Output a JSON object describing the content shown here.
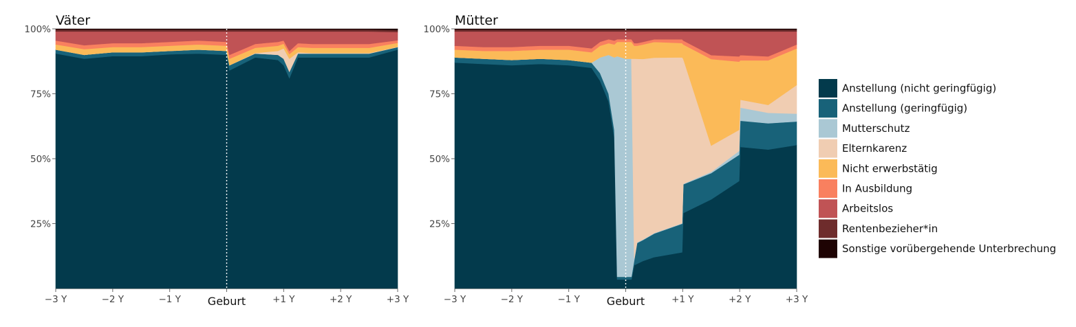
{
  "chart_data": [
    {
      "type": "area",
      "title": "Väter",
      "stacked": true,
      "normalized": true,
      "x_unit": "years relative to birth",
      "x_ticks": [
        {
          "x": -3,
          "label": "−3 Y"
        },
        {
          "x": -2,
          "label": "−2 Y"
        },
        {
          "x": -1,
          "label": "−1 Y"
        },
        {
          "x": 0,
          "label": "Geburt"
        },
        {
          "x": 1,
          "label": "+1 Y"
        },
        {
          "x": 2,
          "label": "+2 Y"
        },
        {
          "x": 3,
          "label": "+3 Y"
        }
      ],
      "y_ticks": [
        {
          "y": 25,
          "label": "25%"
        },
        {
          "y": 50,
          "label": "50%"
        },
        {
          "y": 75,
          "label": "75%"
        },
        {
          "y": 100,
          "label": "100%"
        }
      ],
      "xlim": [
        -3,
        3
      ],
      "ylim": [
        0,
        100
      ],
      "x": [
        -3,
        -2.5,
        -2,
        -1.5,
        -1,
        -0.5,
        0,
        0.05,
        0.5,
        0.9,
        1.0,
        1.1,
        1.25,
        1.5,
        2,
        2.5,
        3
      ],
      "series": [
        {
          "name": "Anstellung (nicht geringfügig)",
          "values": [
            90.5,
            88.5,
            89.5,
            89.5,
            90.2,
            90.5,
            90.0,
            84.0,
            89.0,
            88.0,
            86.0,
            81.0,
            89.0,
            89.0,
            89.0,
            89.0,
            92.0
          ]
        },
        {
          "name": "Anstellung (geringfügig)",
          "values": [
            1.5,
            1.5,
            1.5,
            1.5,
            1.3,
            1.5,
            1.5,
            2.0,
            1.5,
            2.0,
            2.5,
            2.5,
            1.5,
            1.5,
            1.5,
            1.5,
            1.0
          ]
        },
        {
          "name": "Mutterschutz",
          "values": [
            0,
            0,
            0,
            0,
            0,
            0,
            0,
            0,
            0,
            0,
            0,
            0,
            0,
            0,
            0,
            0,
            0
          ]
        },
        {
          "name": "Elternkarenz",
          "values": [
            0,
            0,
            0,
            0,
            0,
            0,
            0,
            0,
            0.2,
            1.5,
            4.0,
            5.0,
            0.5,
            0.2,
            0.2,
            0.2,
            0.1
          ]
        },
        {
          "name": "Nicht erwerbstätig",
          "values": [
            2.0,
            2.2,
            2.0,
            2.0,
            2.0,
            2.0,
            2.0,
            2.5,
            2.0,
            2.0,
            1.8,
            1.8,
            2.0,
            2.0,
            2.0,
            2.0,
            1.5
          ]
        },
        {
          "name": "In Ausbildung",
          "values": [
            1.5,
            1.5,
            1.5,
            1.5,
            1.5,
            1.5,
            1.5,
            1.5,
            1.5,
            1.5,
            1.2,
            1.2,
            1.5,
            1.5,
            1.5,
            1.5,
            1.0
          ]
        },
        {
          "name": "Arbeitslos",
          "values": [
            3.5,
            5.3,
            4.5,
            4.5,
            4.0,
            3.5,
            4.0,
            9.0,
            4.8,
            4.0,
            3.5,
            7.5,
            4.5,
            4.8,
            4.8,
            4.8,
            3.2
          ]
        },
        {
          "name": "Rentenbezieher*in",
          "values": [
            0.7,
            0.7,
            0.7,
            0.7,
            0.7,
            0.7,
            0.7,
            0.7,
            0.7,
            0.7,
            0.7,
            0.7,
            0.7,
            0.7,
            0.7,
            0.7,
            0.7
          ]
        },
        {
          "name": "Sonstige vorübergehende Unterbrechung",
          "values": [
            0.3,
            0.3,
            0.3,
            0.3,
            0.3,
            0.3,
            0.3,
            0.3,
            0.3,
            0.3,
            0.3,
            0.3,
            0.3,
            0.3,
            0.3,
            0.3,
            0.5
          ]
        }
      ],
      "vline": {
        "x": 0,
        "style": "dotted",
        "color": "#ffffff"
      }
    },
    {
      "type": "area",
      "title": "Mütter",
      "stacked": true,
      "normalized": true,
      "x_unit": "years relative to birth",
      "x_ticks": [
        {
          "x": -3,
          "label": "−3 Y"
        },
        {
          "x": -2,
          "label": "−2 Y"
        },
        {
          "x": -1,
          "label": "−1 Y"
        },
        {
          "x": 0,
          "label": "Geburt"
        },
        {
          "x": 1,
          "label": "+1 Y"
        },
        {
          "x": 2,
          "label": "+2 Y"
        },
        {
          "x": 3,
          "label": "+3 Y"
        }
      ],
      "y_ticks": [
        {
          "y": 25,
          "label": "25%"
        },
        {
          "y": 50,
          "label": "50%"
        },
        {
          "y": 75,
          "label": "75%"
        },
        {
          "y": 100,
          "label": "100%"
        }
      ],
      "xlim": [
        -3,
        3
      ],
      "ylim": [
        0,
        100
      ],
      "x": [
        -3,
        -2.5,
        -2,
        -1.5,
        -1,
        -0.6,
        -0.45,
        -0.3,
        -0.2,
        -0.15,
        0,
        0.1,
        0.15,
        0.2,
        0.3,
        0.5,
        0.99,
        1.01,
        1.5,
        1.99,
        2.01,
        2.5,
        3
      ],
      "series": [
        {
          "name": "Anstellung (nicht geringfügig)",
          "values": [
            87.0,
            86.5,
            86.0,
            86.5,
            86.0,
            85.0,
            80.0,
            72.0,
            58.0,
            3.5,
            3.5,
            3.5,
            9.0,
            9.5,
            10.5,
            12.0,
            14.0,
            29.0,
            34.0,
            41.0,
            54.0,
            53.0,
            55.0
          ]
        },
        {
          "name": "Anstellung (geringfügig)",
          "values": [
            2.0,
            2.0,
            2.0,
            2.0,
            2.0,
            2.0,
            3.0,
            3.0,
            3.0,
            1.0,
            1.0,
            1.0,
            2.0,
            8.0,
            8.0,
            9.0,
            11.0,
            11.0,
            10.0,
            10.0,
            10.0,
            10.0,
            9.0
          ]
        },
        {
          "name": "Mutterschutz",
          "values": [
            0,
            0,
            0,
            0,
            0,
            0,
            6.0,
            15.0,
            28.0,
            85.0,
            84.0,
            84.0,
            0.5,
            0.3,
            0.2,
            0.2,
            0.2,
            0.2,
            0.5,
            1.5,
            5.0,
            4.0,
            3.0
          ]
        },
        {
          "name": "Elternkarenz",
          "values": [
            0,
            0,
            0,
            0,
            0,
            0,
            0,
            0,
            0,
            0,
            0,
            0,
            77.0,
            70.5,
            69.0,
            67.0,
            64.0,
            48.0,
            10.0,
            8.0,
            3.0,
            3.0,
            11.0
          ]
        },
        {
          "name": "Nicht erwerbstätig",
          "values": [
            3.0,
            3.0,
            3.5,
            3.5,
            4.0,
            4.0,
            4.5,
            4.5,
            5.0,
            5.5,
            6.5,
            6.5,
            5.0,
            5.0,
            5.5,
            6.0,
            5.5,
            5.5,
            33.0,
            26.0,
            15.0,
            17.0,
            14.0
          ]
        },
        {
          "name": "In Ausbildung",
          "values": [
            1.5,
            1.5,
            1.5,
            1.5,
            1.5,
            1.5,
            1.5,
            1.5,
            1.5,
            1.0,
            1.0,
            1.0,
            1.0,
            1.0,
            1.0,
            1.0,
            1.5,
            1.5,
            1.5,
            2.0,
            2.0,
            1.5,
            1.5
          ]
        },
        {
          "name": "Arbeitslos",
          "values": [
            5.5,
            6.0,
            6.0,
            5.5,
            5.5,
            6.5,
            4.0,
            3.0,
            3.5,
            3.0,
            3.0,
            3.0,
            4.5,
            4.5,
            4.0,
            3.0,
            3.0,
            3.5,
            9.0,
            9.5,
            9.0,
            9.5,
            5.0
          ]
        },
        {
          "name": "Rentenbezieher*in",
          "values": [
            0.7,
            0.7,
            0.7,
            0.7,
            0.7,
            0.7,
            0.7,
            0.7,
            0.7,
            0.7,
            0.7,
            0.7,
            0.7,
            0.7,
            0.7,
            0.7,
            0.7,
            0.7,
            0.7,
            0.7,
            0.7,
            0.7,
            0.7
          ]
        },
        {
          "name": "Sonstige vorübergehende Unterbrechung",
          "values": [
            0.3,
            0.3,
            0.3,
            0.3,
            0.3,
            0.3,
            0.3,
            0.3,
            0.3,
            0.3,
            0.3,
            0.3,
            0.3,
            0.3,
            0.3,
            0.3,
            0.3,
            0.3,
            0.3,
            0.3,
            0.3,
            0.3,
            0.3
          ]
        }
      ],
      "vline": {
        "x": 0,
        "style": "dotted",
        "color": "#ffffff"
      }
    }
  ],
  "legend": {
    "placement": "right",
    "items": [
      {
        "label": "Anstellung (nicht geringfügig)",
        "color": "#033a4c"
      },
      {
        "label": "Anstellung (geringfügig)",
        "color": "#186279"
      },
      {
        "label": "Mutterschutz",
        "color": "#aac8d4"
      },
      {
        "label": "Elternkarenz",
        "color": "#f0cdb2"
      },
      {
        "label": "Nicht erwerbstätig",
        "color": "#fbba58"
      },
      {
        "label": "In Ausbildung",
        "color": "#f9805f"
      },
      {
        "label": "Arbeitslos",
        "color": "#c05355"
      },
      {
        "label": "Rentenbezieher*in",
        "color": "#6e2c2c"
      },
      {
        "label": "Sonstige vorübergehende Unterbrechung",
        "color": "#1e0303"
      }
    ]
  }
}
